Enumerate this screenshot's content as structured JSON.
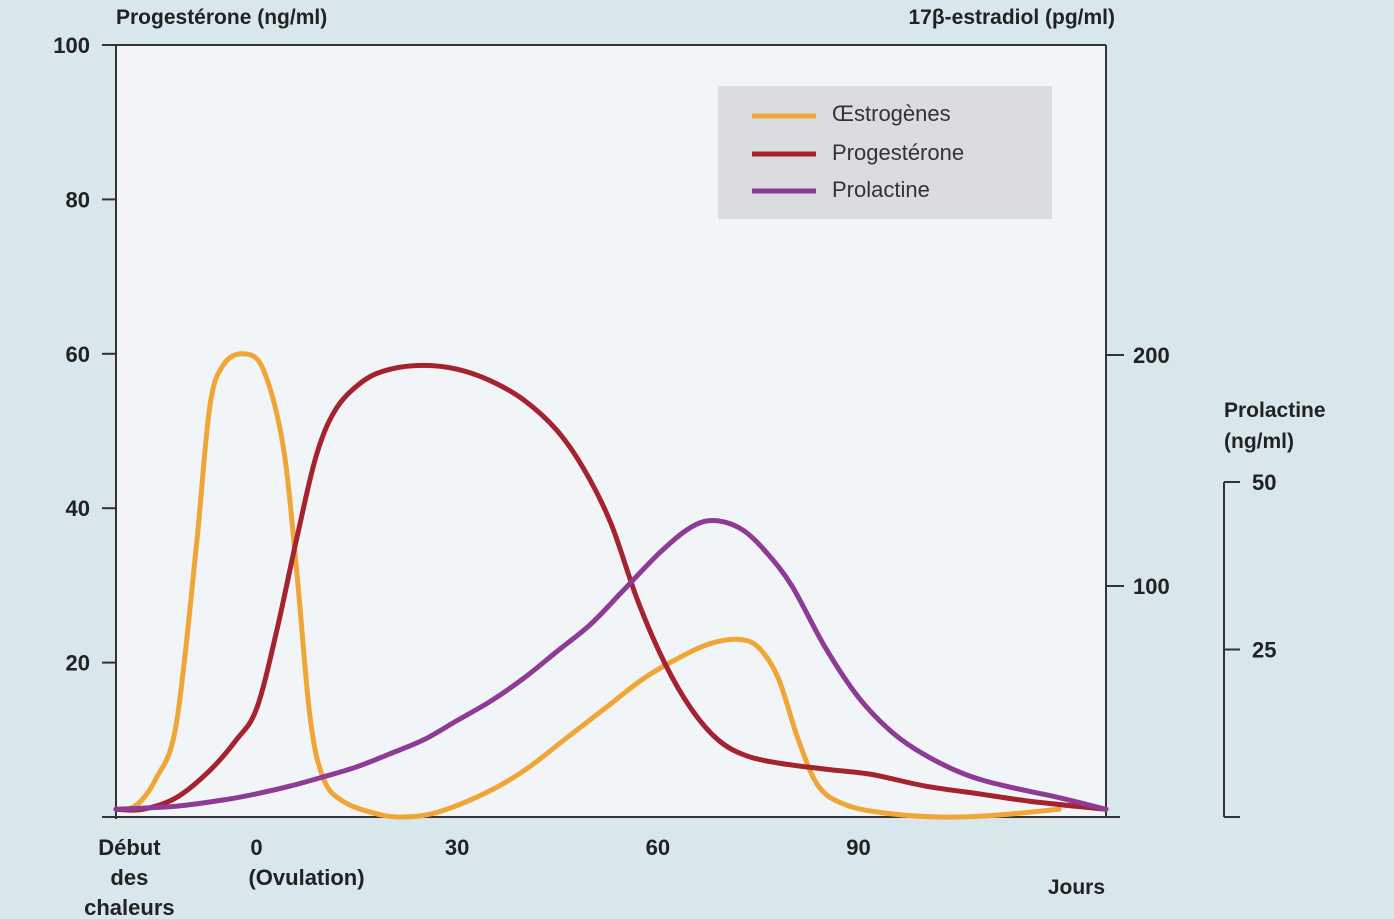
{
  "chart_data": {
    "type": "line",
    "y_left_label": "Progestérone (ng/ml)",
    "y_right_label": "17β-estradiol (pg/ml)",
    "y_prolactin_label_line1": "Prolactine",
    "y_prolactin_label_line2": "(ng/ml)",
    "x_unit_label": "Jours",
    "x_ticks": [
      {
        "value": -19,
        "lines": [
          "Début",
          "des",
          "chaleurs"
        ]
      },
      {
        "value": 0,
        "lines": [
          "0",
          "(Ovulation)"
        ]
      },
      {
        "value": 30,
        "lines": [
          "30"
        ]
      },
      {
        "value": 60,
        "lines": [
          "60"
        ]
      },
      {
        "value": 90,
        "lines": [
          "90"
        ]
      }
    ],
    "xlim": [
      -21,
      127
    ],
    "y_left_ticks": [
      20,
      40,
      60,
      80,
      100
    ],
    "ylim_left": [
      0,
      100
    ],
    "y_right_ticks": [
      100,
      200
    ],
    "ylim_right": [
      0,
      200
    ],
    "y_prolactin_ticks": [
      25,
      50
    ],
    "ylim_prolactin": [
      0,
      50
    ],
    "legend_position": "top-right",
    "series": [
      {
        "name": "Œstrogènes",
        "color": "#f0a637",
        "axis": "left",
        "points": [
          [
            -21,
            1
          ],
          [
            -18,
            1.5
          ],
          [
            -15,
            5
          ],
          [
            -12,
            12
          ],
          [
            -9,
            35
          ],
          [
            -7,
            53
          ],
          [
            -5,
            58.5
          ],
          [
            -2,
            60
          ],
          [
            1,
            58
          ],
          [
            4,
            48
          ],
          [
            6,
            32
          ],
          [
            8,
            13
          ],
          [
            10,
            5
          ],
          [
            13,
            2
          ],
          [
            18,
            0.4
          ],
          [
            22,
            0
          ],
          [
            27,
            0.6
          ],
          [
            34,
            3
          ],
          [
            40,
            6
          ],
          [
            46,
            10
          ],
          [
            52,
            14
          ],
          [
            58,
            18
          ],
          [
            64,
            21
          ],
          [
            68,
            22.5
          ],
          [
            72,
            23
          ],
          [
            75,
            22
          ],
          [
            78,
            18
          ],
          [
            81,
            10
          ],
          [
            84,
            4
          ],
          [
            88,
            1.6
          ],
          [
            94,
            0.5
          ],
          [
            102,
            0
          ],
          [
            110,
            0.2
          ],
          [
            120,
            1
          ]
        ]
      },
      {
        "name": "Progestérone",
        "color": "#a5232f",
        "axis": "left",
        "points": [
          [
            -21,
            1
          ],
          [
            -17,
            1
          ],
          [
            -12,
            2.5
          ],
          [
            -7,
            6
          ],
          [
            -3,
            10
          ],
          [
            0,
            14
          ],
          [
            3,
            24
          ],
          [
            6,
            36
          ],
          [
            9,
            47
          ],
          [
            12,
            53
          ],
          [
            16,
            56.5
          ],
          [
            20,
            58
          ],
          [
            25,
            58.5
          ],
          [
            30,
            58
          ],
          [
            35,
            56.5
          ],
          [
            40,
            54
          ],
          [
            45,
            50
          ],
          [
            49,
            45
          ],
          [
            53,
            38
          ],
          [
            57,
            28
          ],
          [
            61,
            20
          ],
          [
            65,
            14
          ],
          [
            69,
            10
          ],
          [
            73,
            8
          ],
          [
            78,
            7
          ],
          [
            85,
            6.2
          ],
          [
            92,
            5.5
          ],
          [
            100,
            4
          ],
          [
            108,
            3
          ],
          [
            116,
            2
          ],
          [
            127,
            1
          ]
        ]
      },
      {
        "name": "Prolactine",
        "color": "#8d3b95",
        "axis": "left",
        "points": [
          [
            -21,
            1
          ],
          [
            -12,
            1.4
          ],
          [
            -5,
            2.2
          ],
          [
            0,
            3
          ],
          [
            5,
            4
          ],
          [
            10,
            5.2
          ],
          [
            15,
            6.5
          ],
          [
            20,
            8.2
          ],
          [
            25,
            10
          ],
          [
            30,
            12.5
          ],
          [
            35,
            15
          ],
          [
            40,
            18
          ],
          [
            45,
            21.5
          ],
          [
            50,
            25
          ],
          [
            55,
            29.5
          ],
          [
            60,
            34
          ],
          [
            64,
            37
          ],
          [
            67,
            38.3
          ],
          [
            70,
            38.2
          ],
          [
            73,
            37
          ],
          [
            76,
            34.5
          ],
          [
            80,
            30
          ],
          [
            85,
            22
          ],
          [
            90,
            15.5
          ],
          [
            95,
            11
          ],
          [
            100,
            8
          ],
          [
            106,
            5.5
          ],
          [
            112,
            4
          ],
          [
            120,
            2.5
          ],
          [
            127,
            1
          ]
        ]
      }
    ]
  }
}
